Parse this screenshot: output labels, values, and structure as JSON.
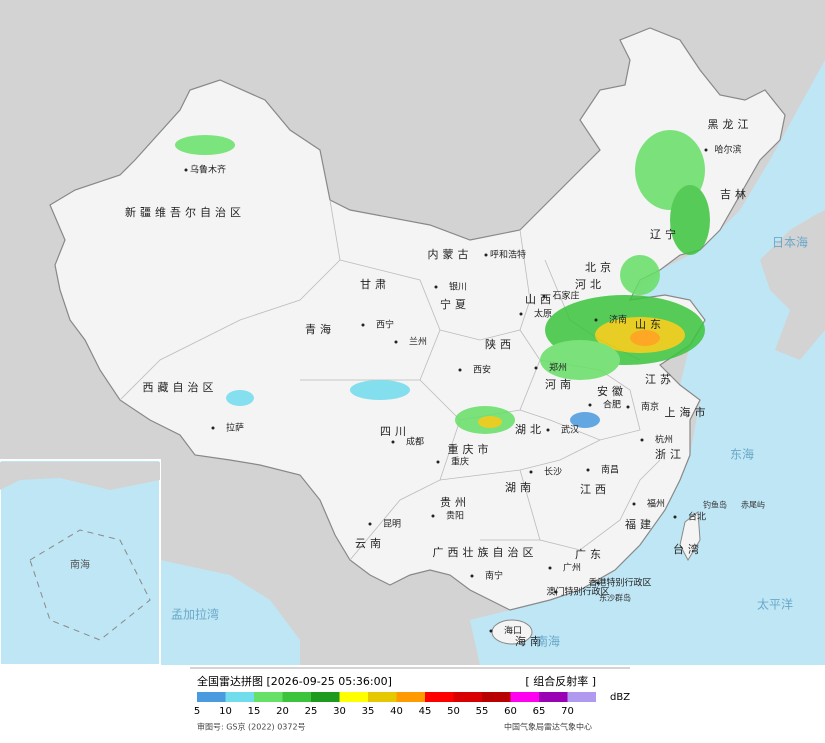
{
  "map": {
    "labels": [
      "黑龙江",
      "吉林",
      "辽宁",
      "内蒙古",
      "新疆维吾尔自治区",
      "西藏自治区",
      "青海",
      "甘肃",
      "宁夏",
      "陕西",
      "山西",
      "河北",
      "山东",
      "河南",
      "江苏",
      "安徽",
      "湖北",
      "四川",
      "重庆市",
      "贵州",
      "云南",
      "湖南",
      "江西",
      "浙江",
      "福建",
      "广东",
      "广西壮族自治区",
      "海南",
      "台湾",
      "上海市",
      "北京",
      "乌鲁木齐",
      "哈尔滨",
      "呼和浩特",
      "银川",
      "西宁",
      "兰州",
      "西安",
      "太原",
      "石家庄",
      "济南",
      "郑州",
      "合肥",
      "南京",
      "杭州",
      "武汉",
      "成都",
      "重庆",
      "贵阳",
      "昆明",
      "长沙",
      "南昌",
      "福州",
      "广州",
      "南宁",
      "海口",
      "拉萨",
      "台北",
      "香港特别行政区",
      "澳门特别行政区",
      "日本海",
      "东海",
      "太平洋",
      "孟加拉湾",
      "南海",
      "钓鱼岛",
      "赤尾屿",
      "东沙群岛"
    ],
    "inset_label": "南海"
  },
  "legend": {
    "title": "全国雷达拼图 [2026-09-25 05:36:00]",
    "product": "[ 组合反射率 ]",
    "unit": "dBZ",
    "ticks": [
      5,
      10,
      15,
      20,
      25,
      30,
      35,
      40,
      45,
      50,
      55,
      60,
      65,
      70
    ],
    "colors": [
      "#4a9ae0",
      "#70dcec",
      "#66e066",
      "#3cc43c",
      "#1e9a1e",
      "#ffff00",
      "#e6c800",
      "#ff9a00",
      "#ff0000",
      "#d80000",
      "#b80000",
      "#ff00f0",
      "#9a00b4",
      "#b09af0"
    ],
    "approval": "审图号: GS京 (2022) 0372号",
    "source": "中国气象局雷达气象中心"
  }
}
